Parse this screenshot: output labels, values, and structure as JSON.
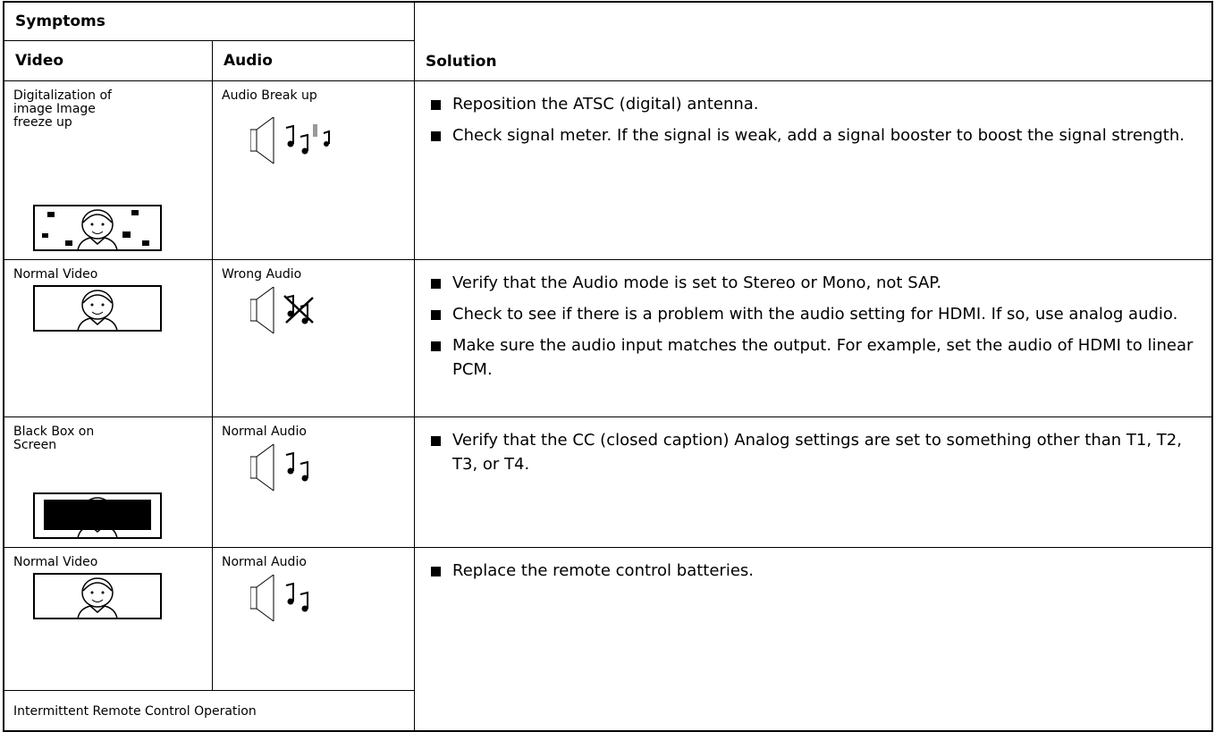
{
  "table": {
    "headers": {
      "symptoms": "Symptoms",
      "video": "Video",
      "audio": "Audio",
      "solution": "Solution"
    },
    "rows": [
      {
        "video": "Digitalization of image Image freeze up",
        "audio": "Audio Break up",
        "solutions": [
          "Reposition the ATSC (digital) antenna.",
          "Check signal meter. If the signal is weak, add a signal booster to boost the signal strength."
        ]
      },
      {
        "video": "Normal Video",
        "audio": "Wrong Audio",
        "solutions": [
          "Verify that the Audio mode is set to Stereo or Mono, not SAP.",
          "Check to see if there is a problem with the audio setting for HDMI. If so, use analog audio.",
          "Make sure the audio input matches the output. For example, set the audio of HDMI to linear PCM."
        ]
      },
      {
        "video": "Black Box on Screen",
        "audio": "Normal Audio",
        "solutions": [
          "Verify that the CC (closed caption) Analog settings are set to something other than T1, T2, T3, or T4."
        ]
      },
      {
        "video": "Normal Video",
        "audio": "Normal Audio",
        "solutions": [
          "Replace the remote control batteries."
        ],
        "note": "Intermittent Remote Control Operation"
      }
    ]
  }
}
